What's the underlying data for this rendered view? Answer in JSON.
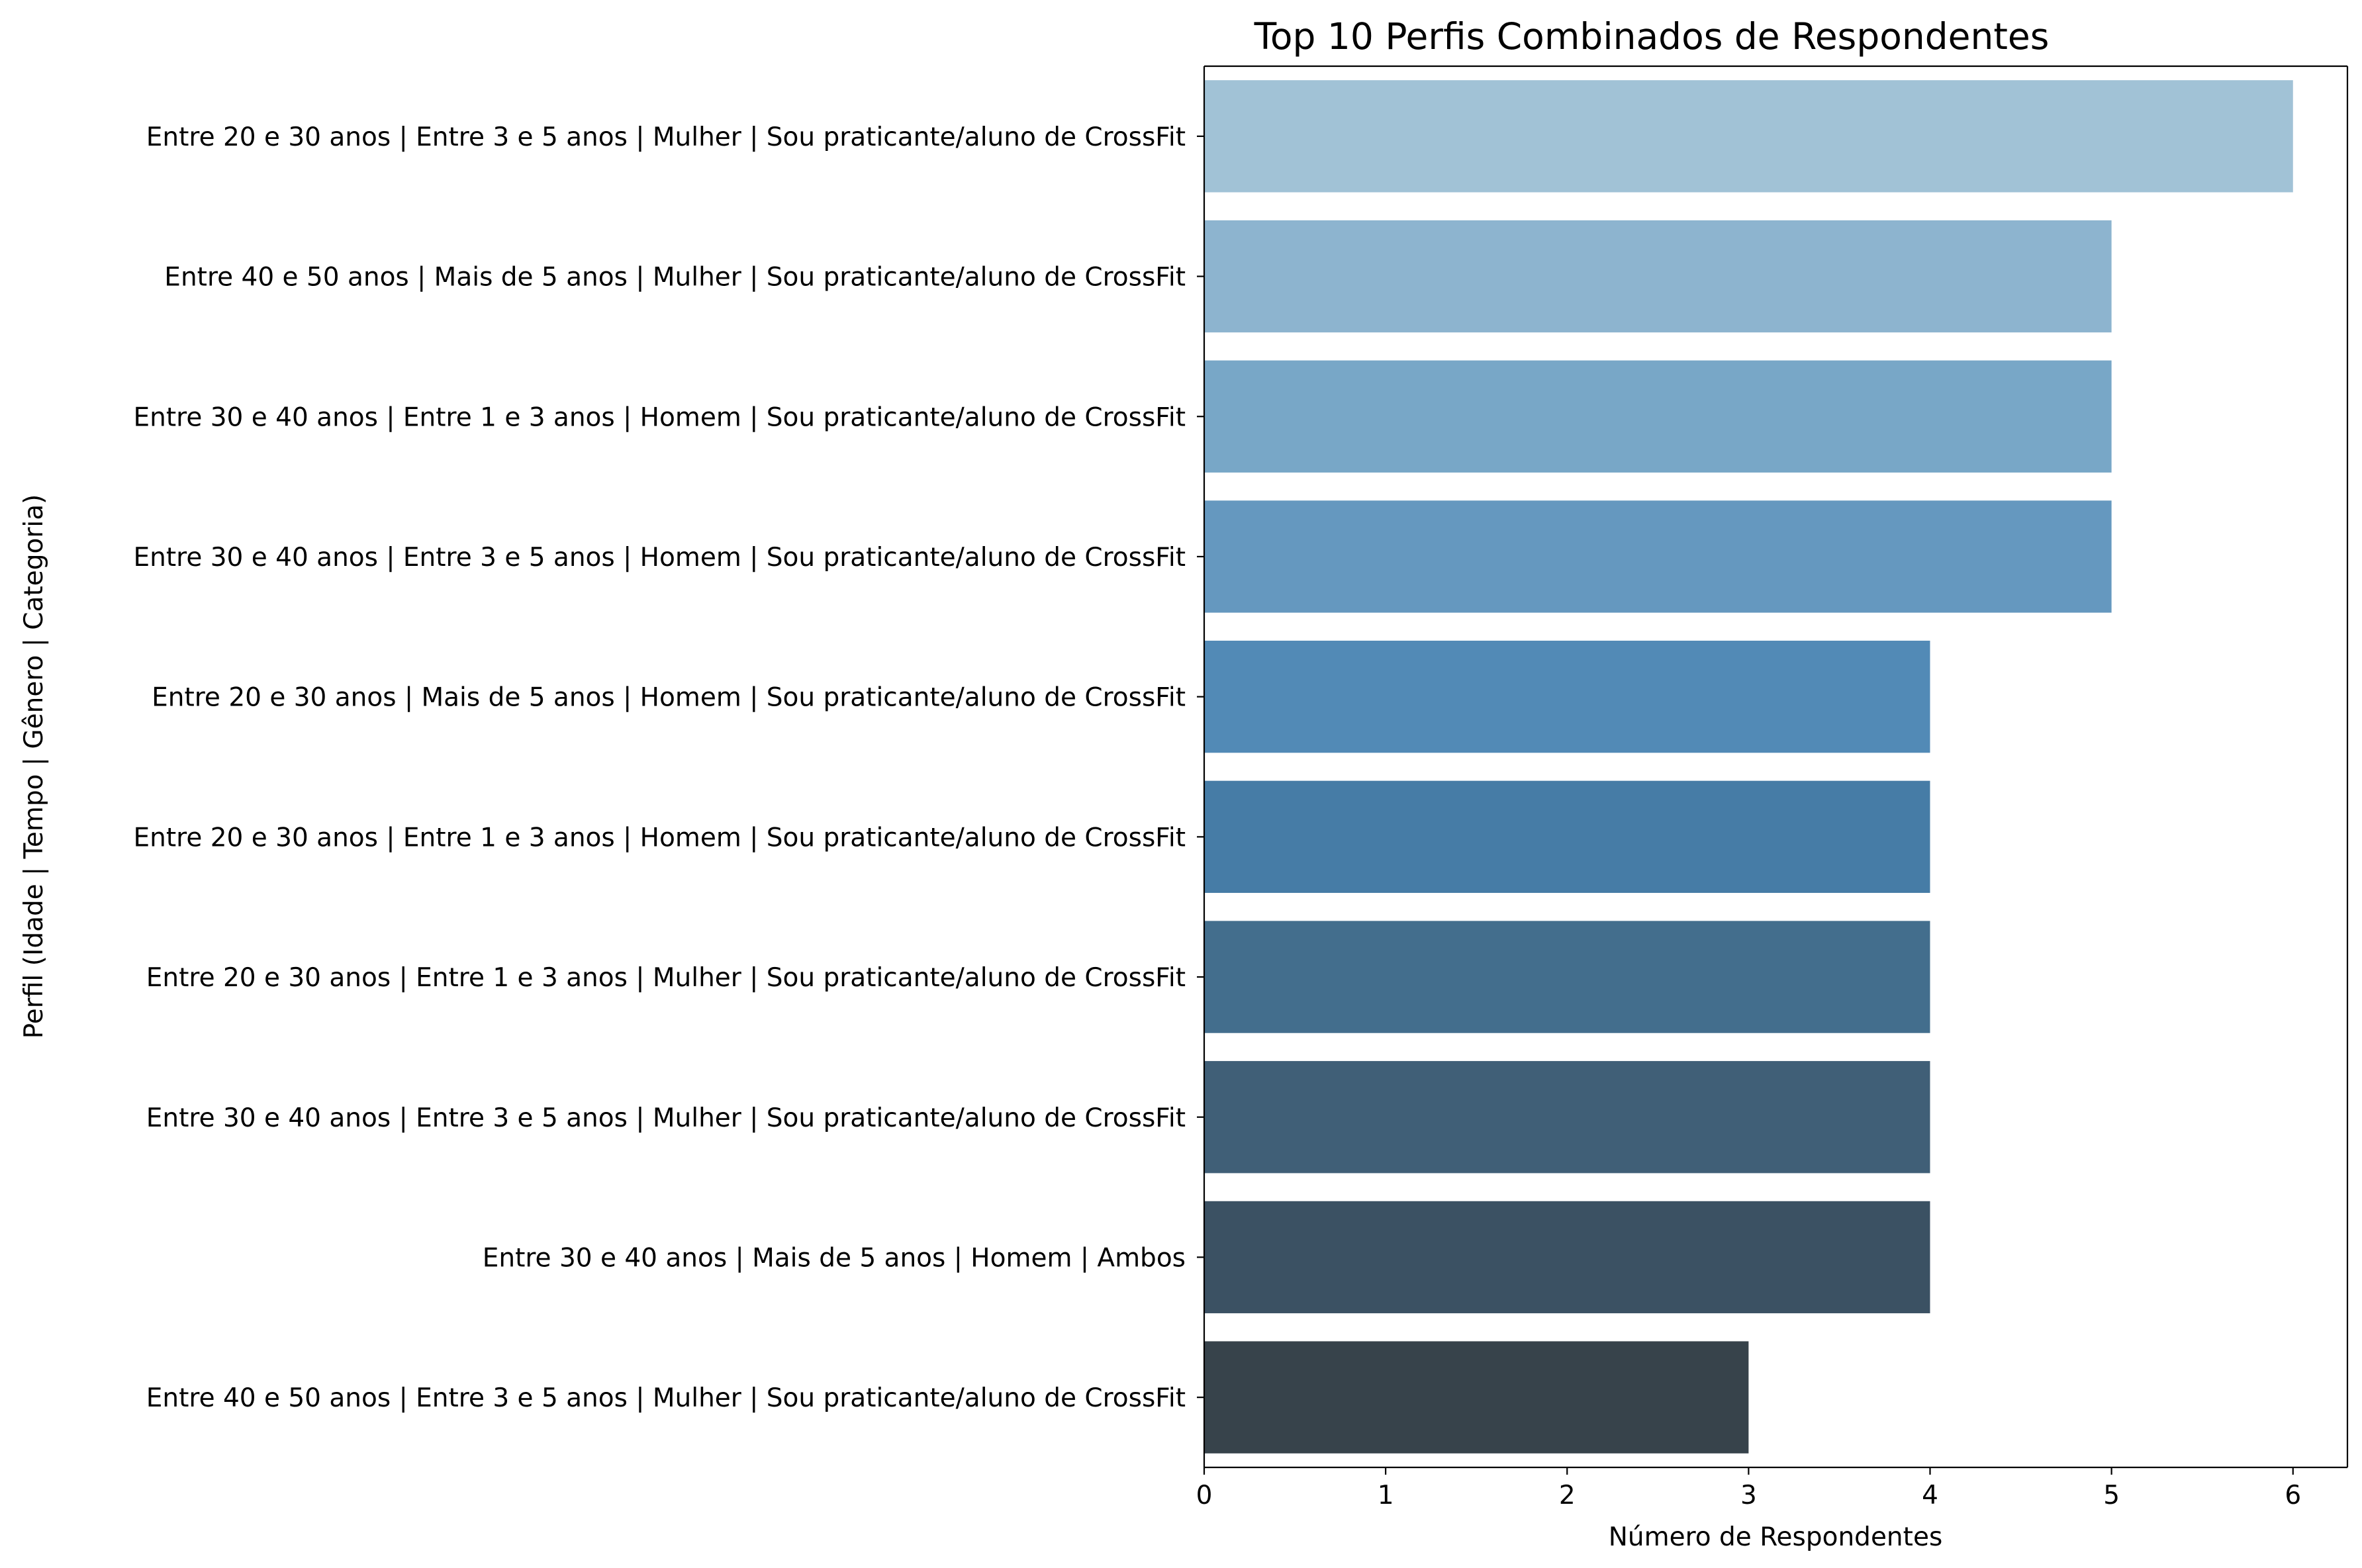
{
  "chart_data": {
    "type": "bar",
    "orientation": "horizontal",
    "title": "Top 10 Perfis Combinados de Respondentes",
    "xlabel": "Número de Respondentes",
    "ylabel": "Perfil (Idade | Tempo | Gênero | Categoria)",
    "xlim": [
      0,
      6.3
    ],
    "xticks": [
      "0",
      "1",
      "2",
      "3",
      "4",
      "5",
      "6"
    ],
    "grid": false,
    "legend": "none",
    "categories": [
      "Entre 20 e 30 anos | Entre 3 e 5 anos | Mulher | Sou praticante/aluno de CrossFit",
      "Entre 40 e 50 anos | Mais de 5 anos | Mulher | Sou praticante/aluno de CrossFit",
      "Entre 30 e 40 anos | Entre 1 e 3 anos | Homem | Sou praticante/aluno de CrossFit",
      "Entre 30 e 40 anos | Entre 3 e 5 anos | Homem | Sou praticante/aluno de CrossFit",
      "Entre 20 e 30 anos | Mais de 5 anos | Homem | Sou praticante/aluno de CrossFit",
      "Entre 20 e 30 anos | Entre 1 e 3 anos | Homem | Sou praticante/aluno de CrossFit",
      "Entre 20 e 30 anos | Entre 1 e 3 anos | Mulher | Sou praticante/aluno de CrossFit",
      "Entre 30 e 40 anos | Entre 3 e 5 anos | Mulher | Sou praticante/aluno de CrossFit",
      "Entre 30 e 40 anos | Mais de 5 anos | Homem | Ambos",
      "Entre 40 e 50 anos | Entre 3 e 5 anos | Mulher | Sou praticante/aluno de CrossFit"
    ],
    "values": [
      6,
      5,
      5,
      5,
      4,
      4,
      4,
      4,
      4,
      3
    ],
    "colors": [
      "#a1c2d6",
      "#8db4cf",
      "#78a7c7",
      "#6598bf",
      "#528ab6",
      "#467ca6",
      "#436e8d",
      "#405f77",
      "#3b5163",
      "#37434b"
    ]
  }
}
